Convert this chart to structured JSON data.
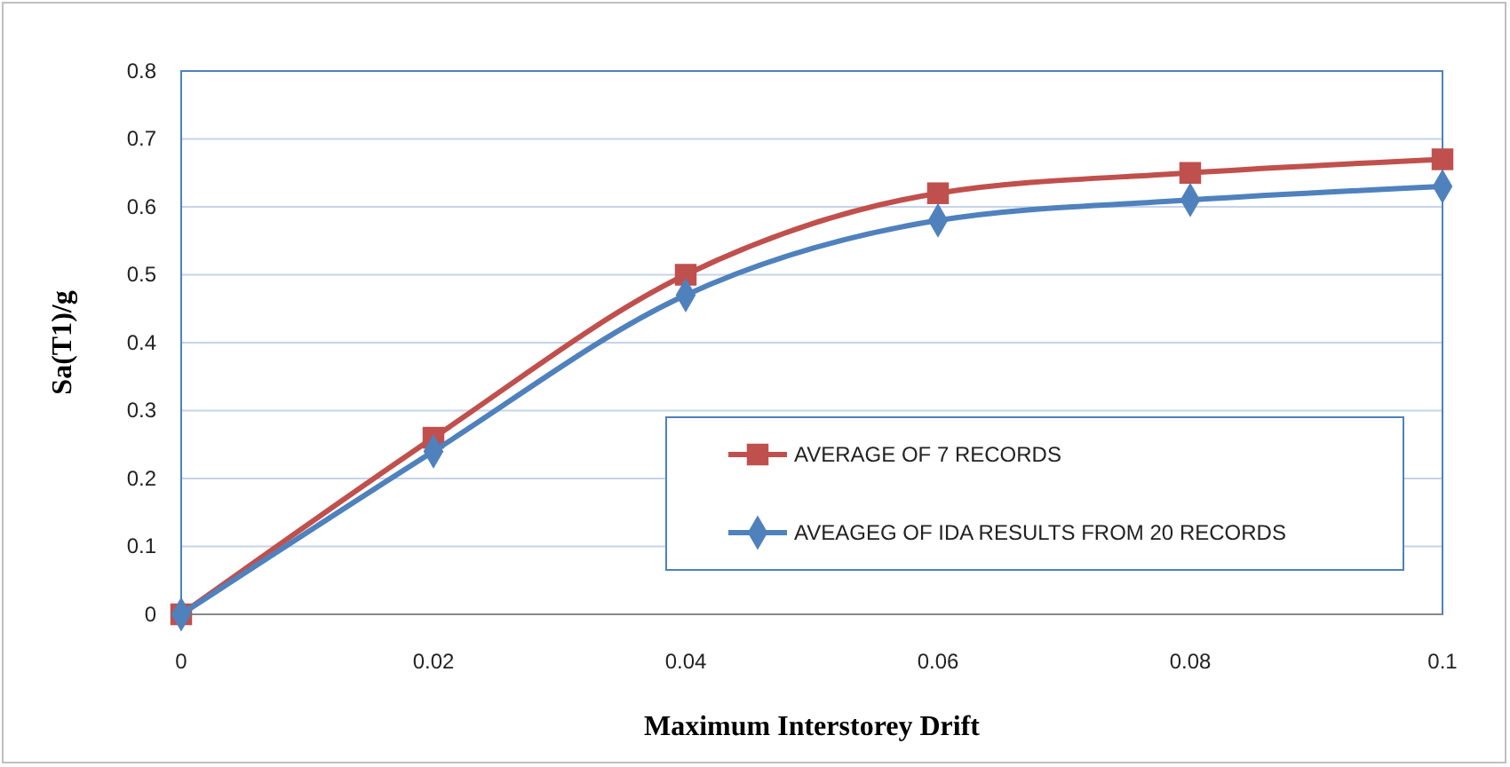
{
  "chart_data": {
    "type": "line",
    "xlabel": "Maximum Interstorey Drift",
    "ylabel": "Sa(T1)/g",
    "x": [
      0,
      0.02,
      0.04,
      0.06,
      0.08,
      0.1
    ],
    "xlim": [
      0,
      0.1
    ],
    "xticks": [
      0,
      0.02,
      0.04,
      0.06,
      0.08,
      0.1
    ],
    "ylim": [
      0,
      0.8
    ],
    "yticks": [
      0,
      0.1,
      0.2,
      0.3,
      0.4,
      0.5,
      0.6,
      0.7,
      0.8
    ],
    "grid": "y",
    "legend": "bottom right",
    "series": [
      {
        "name": "AVERAGE OF 7 RECORDS",
        "color": "#c0504d",
        "marker": "square",
        "values": [
          0,
          0.26,
          0.5,
          0.62,
          0.65,
          0.67
        ]
      },
      {
        "name": "AVEAGEG OF IDA RESULTS FROM 20 RECORDS",
        "color": "#4f81bd",
        "marker": "diamond",
        "values": [
          0,
          0.24,
          0.47,
          0.58,
          0.61,
          0.63
        ]
      }
    ]
  }
}
